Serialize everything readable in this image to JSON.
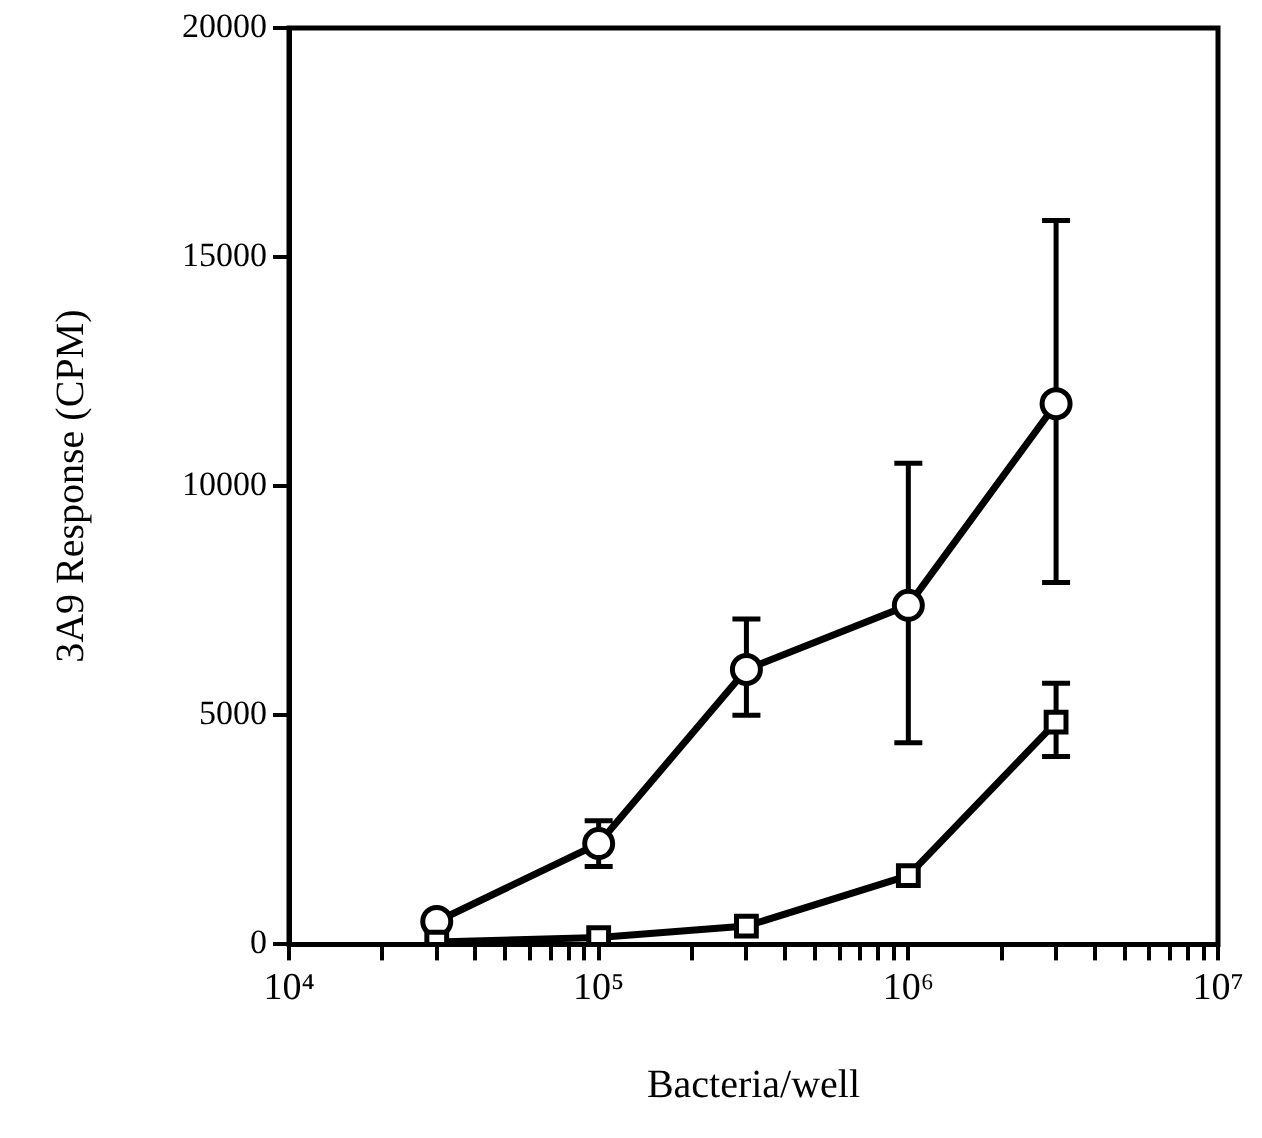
{
  "chart_data": {
    "type": "line",
    "xlabel": "Bacteria/well",
    "ylabel": "3A9 Response (CPM)",
    "log": "x",
    "grid": false,
    "legend": false,
    "line_style": "solid",
    "x": [
      30000,
      100000,
      300000,
      1000000,
      3000000
    ],
    "series": [
      {
        "color": "#000000",
        "marker": "circle",
        "values": [
          500,
          2200,
          6000,
          7400,
          11800
        ],
        "errors": [
          null,
          [
            1700,
            2700
          ],
          [
            5000,
            7100
          ],
          [
            4400,
            10500
          ],
          [
            7900,
            15800
          ]
        ]
      },
      {
        "color": "#000000",
        "marker": "square",
        "values": [
          50,
          150,
          400,
          1500,
          4850
        ],
        "errors": [
          null,
          null,
          null,
          null,
          [
            4100,
            5700
          ]
        ]
      }
    ],
    "xlim": [
      10000,
      10000000
    ],
    "xticks": [
      {
        "value": 10000,
        "label": "10⁴"
      },
      {
        "value": 20000,
        "label": null
      },
      {
        "value": 30000,
        "label": null
      },
      {
        "value": 40000,
        "label": null
      },
      {
        "value": 50000,
        "label": null
      },
      {
        "value": 60000,
        "label": null
      },
      {
        "value": 70000,
        "label": null
      },
      {
        "value": 80000,
        "label": null
      },
      {
        "value": 90000,
        "label": null
      },
      {
        "value": 100000,
        "label": "10⁵"
      },
      {
        "value": 200000,
        "label": null
      },
      {
        "value": 300000,
        "label": null
      },
      {
        "value": 400000,
        "label": null
      },
      {
        "value": 500000,
        "label": null
      },
      {
        "value": 600000,
        "label": null
      },
      {
        "value": 700000,
        "label": null
      },
      {
        "value": 800000,
        "label": null
      },
      {
        "value": 900000,
        "label": null
      },
      {
        "value": 1000000,
        "label": "10⁶"
      },
      {
        "value": 2000000,
        "label": null
      },
      {
        "value": 3000000,
        "label": null
      },
      {
        "value": 4000000,
        "label": null
      },
      {
        "value": 5000000,
        "label": null
      },
      {
        "value": 6000000,
        "label": null
      },
      {
        "value": 7000000,
        "label": null
      },
      {
        "value": 8000000,
        "label": null
      },
      {
        "value": 9000000,
        "label": null
      },
      {
        "value": 10000000,
        "label": "10⁷"
      }
    ],
    "ylim": [
      0,
      20000
    ],
    "yticks": [
      0,
      5000,
      10000,
      15000,
      20000
    ]
  }
}
